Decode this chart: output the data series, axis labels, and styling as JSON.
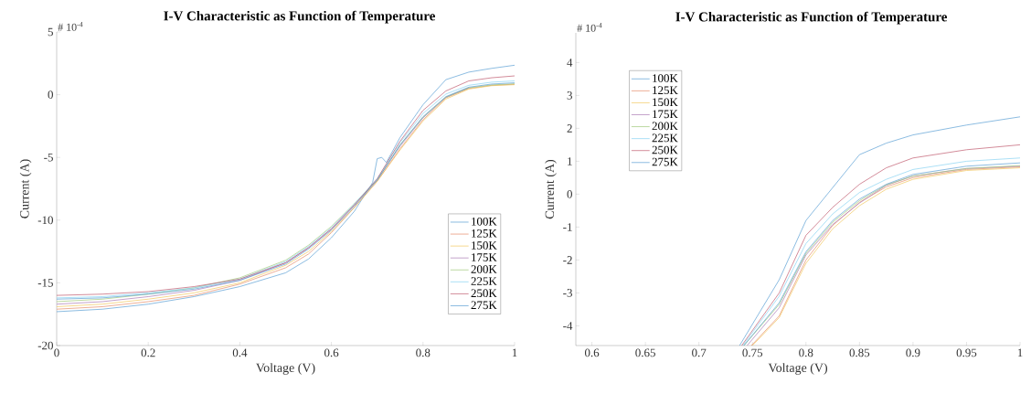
{
  "chart_data": [
    {
      "type": "line",
      "title": "I-V Characteristic as Function of Temperature",
      "annotations": [
        "# 10$^{-4}$"
      ],
      "xlabel": "Voltage (V)",
      "ylabel": "Current (A)",
      "xlim": [
        0,
        1
      ],
      "ylim": [
        -20,
        5
      ],
      "xticks": [
        0,
        0.2,
        0.4,
        0.6,
        0.8,
        1
      ],
      "yticks": [
        -20,
        -15,
        -10,
        -5,
        0,
        5
      ],
      "legend": "bottom right",
      "series": [
        {
          "name": "100K",
          "color": "#5a9fd4",
          "x": [
            0,
            0.1,
            0.2,
            0.3,
            0.4,
            0.5,
            0.55,
            0.6,
            0.65,
            0.69,
            0.7,
            0.71,
            0.72,
            0.75,
            0.8,
            0.85,
            0.9,
            0.95,
            1.0
          ],
          "values": [
            -17.3,
            -17.1,
            -16.7,
            -16.1,
            -15.3,
            -14.2,
            -13.1,
            -11.4,
            -9.3,
            -7.0,
            -5.1,
            -5.0,
            -5.4,
            -3.4,
            -0.8,
            1.2,
            1.8,
            2.1,
            2.35
          ]
        },
        {
          "name": "125K",
          "color": "#e58c6a",
          "x": [
            0,
            0.1,
            0.2,
            0.3,
            0.4,
            0.5,
            0.55,
            0.6,
            0.65,
            0.7,
            0.75,
            0.8,
            0.85,
            0.9,
            0.95,
            1.0
          ],
          "values": [
            -17.1,
            -16.9,
            -16.5,
            -16.0,
            -15.1,
            -13.8,
            -12.7,
            -11.0,
            -9.0,
            -6.9,
            -4.3,
            -2.0,
            -0.25,
            0.5,
            0.75,
            0.83
          ]
        },
        {
          "name": "150K",
          "color": "#f0c75e",
          "x": [
            0,
            0.1,
            0.2,
            0.3,
            0.4,
            0.5,
            0.55,
            0.6,
            0.65,
            0.7,
            0.75,
            0.8,
            0.85,
            0.9,
            0.95,
            1.0
          ],
          "values": [
            -16.9,
            -16.7,
            -16.3,
            -15.8,
            -15.0,
            -13.6,
            -12.5,
            -10.9,
            -9.0,
            -6.9,
            -4.4,
            -2.1,
            -0.35,
            0.45,
            0.72,
            0.8
          ]
        },
        {
          "name": "175K",
          "color": "#aa7bb4",
          "x": [
            0,
            0.1,
            0.2,
            0.3,
            0.4,
            0.5,
            0.55,
            0.6,
            0.65,
            0.7,
            0.75,
            0.8,
            0.85,
            0.9
          ],
          "values": [
            -16.7,
            -16.5,
            -16.1,
            -15.6,
            -14.8,
            -13.4,
            -12.2,
            -10.7,
            -8.8,
            -6.8,
            -4.1,
            -1.85,
            -0.2,
            0.55
          ]
        },
        {
          "name": "200K",
          "color": "#a0c97a",
          "x": [
            0,
            0.1,
            0.2,
            0.3,
            0.4,
            0.5,
            0.55,
            0.6,
            0.65,
            0.7,
            0.75,
            0.8,
            0.85,
            0.9,
            0.95,
            1.0
          ],
          "values": [
            -16.5,
            -16.3,
            -15.9,
            -15.4,
            -14.6,
            -13.2,
            -12.0,
            -10.5,
            -8.7,
            -6.8,
            -4.0,
            -1.8,
            -0.2,
            0.55,
            0.78,
            0.87
          ]
        },
        {
          "name": "225K",
          "color": "#88d2f2",
          "x": [
            0,
            0.1,
            0.2,
            0.3,
            0.4,
            0.5,
            0.55,
            0.6,
            0.65,
            0.7,
            0.75,
            0.8,
            0.85,
            0.9,
            0.95,
            1.0
          ],
          "values": [
            -16.2,
            -16.1,
            -15.8,
            -15.4,
            -14.7,
            -13.3,
            -12.1,
            -10.6,
            -8.7,
            -6.7,
            -3.8,
            -1.5,
            0.05,
            0.75,
            1.0,
            1.1
          ]
        },
        {
          "name": "250K",
          "color": "#c05a6e",
          "x": [
            0,
            0.1,
            0.2,
            0.3,
            0.4,
            0.5,
            0.55,
            0.6,
            0.65,
            0.7,
            0.75,
            0.8,
            0.85,
            0.9,
            0.95,
            1.0
          ],
          "values": [
            -16.0,
            -15.9,
            -15.7,
            -15.3,
            -14.7,
            -13.4,
            -12.2,
            -10.7,
            -8.8,
            -6.7,
            -3.7,
            -1.25,
            0.3,
            1.1,
            1.35,
            1.5
          ]
        },
        {
          "name": "275K",
          "color": "#5a9fd4",
          "x": [
            0,
            0.1,
            0.2,
            0.3,
            0.4,
            0.5,
            0.55,
            0.6,
            0.65,
            0.7,
            0.75,
            0.8,
            0.85,
            0.9,
            0.95,
            1.0
          ],
          "values": [
            -16.3,
            -16.2,
            -15.9,
            -15.5,
            -14.8,
            -13.5,
            -12.3,
            -10.8,
            -8.9,
            -6.8,
            -4.0,
            -1.75,
            -0.15,
            0.6,
            0.85,
            0.95
          ]
        }
      ]
    },
    {
      "type": "line",
      "title": "I-V Characteristic as Function of Temperature",
      "annotations": [
        "# 10$^{-4}$"
      ],
      "xlabel": "Voltage (V)",
      "ylabel": "Current (A)",
      "xlim": [
        0.585,
        1.0
      ],
      "ylim": [
        -4.6,
        4.9
      ],
      "xticks": [
        0.6,
        0.65,
        0.7,
        0.75,
        0.8,
        0.85,
        0.9,
        0.95,
        1
      ],
      "yticks": [
        -4,
        -3,
        -2,
        -1,
        0,
        1,
        2,
        3,
        4
      ],
      "legend": "top left",
      "series": [
        {
          "name": "100K",
          "color": "#5a9fd4",
          "x": [
            0.738,
            0.775,
            0.8,
            0.825,
            0.85,
            0.875,
            0.9,
            0.95,
            1.0
          ],
          "values": [
            -4.6,
            -2.6,
            -0.8,
            0.2,
            1.2,
            1.55,
            1.8,
            2.1,
            2.35
          ]
        },
        {
          "name": "125K",
          "color": "#e58c6a",
          "x": [
            0.749,
            0.775,
            0.8,
            0.825,
            0.85,
            0.875,
            0.9,
            0.95,
            1.0
          ],
          "values": [
            -4.6,
            -3.7,
            -2.0,
            -0.95,
            -0.25,
            0.22,
            0.5,
            0.75,
            0.83
          ]
        },
        {
          "name": "150K",
          "color": "#f0c75e",
          "x": [
            0.75,
            0.775,
            0.8,
            0.825,
            0.85,
            0.875,
            0.9,
            0.95,
            1.0
          ],
          "values": [
            -4.6,
            -3.75,
            -2.1,
            -1.05,
            -0.35,
            0.15,
            0.45,
            0.72,
            0.8
          ]
        },
        {
          "name": "175K",
          "color": "#aa7bb4",
          "x": [
            0.745,
            0.775,
            0.8,
            0.825,
            0.85,
            0.875,
            0.9,
            0.95,
            1.0
          ],
          "values": [
            -4.6,
            -3.45,
            -1.85,
            -0.92,
            -0.27,
            0.27,
            0.55,
            0.78,
            0.85
          ]
        },
        {
          "name": "200K",
          "color": "#a0c97a",
          "x": [
            0.742,
            0.775,
            0.8,
            0.825,
            0.85,
            0.875,
            0.9,
            0.95,
            1.0
          ],
          "values": [
            -4.6,
            -3.35,
            -1.8,
            -0.85,
            -0.2,
            0.28,
            0.55,
            0.78,
            0.87
          ]
        },
        {
          "name": "225K",
          "color": "#88d2f2",
          "x": [
            0.741,
            0.775,
            0.8,
            0.825,
            0.85,
            0.875,
            0.9,
            0.95,
            1.0
          ],
          "values": [
            -4.6,
            -3.1,
            -1.5,
            -0.6,
            0.05,
            0.45,
            0.75,
            1.0,
            1.1
          ]
        },
        {
          "name": "250K",
          "color": "#c05a6e",
          "x": [
            0.74,
            0.775,
            0.8,
            0.825,
            0.85,
            0.875,
            0.9,
            0.95,
            1.0
          ],
          "values": [
            -4.6,
            -3.0,
            -1.25,
            -0.4,
            0.3,
            0.8,
            1.1,
            1.35,
            1.5
          ]
        },
        {
          "name": "275K",
          "color": "#5a9fd4",
          "x": [
            0.742,
            0.775,
            0.8,
            0.825,
            0.85,
            0.875,
            0.9,
            0.95,
            1.0
          ],
          "values": [
            -4.6,
            -3.3,
            -1.75,
            -0.8,
            -0.15,
            0.3,
            0.6,
            0.85,
            0.95
          ]
        }
      ]
    }
  ]
}
